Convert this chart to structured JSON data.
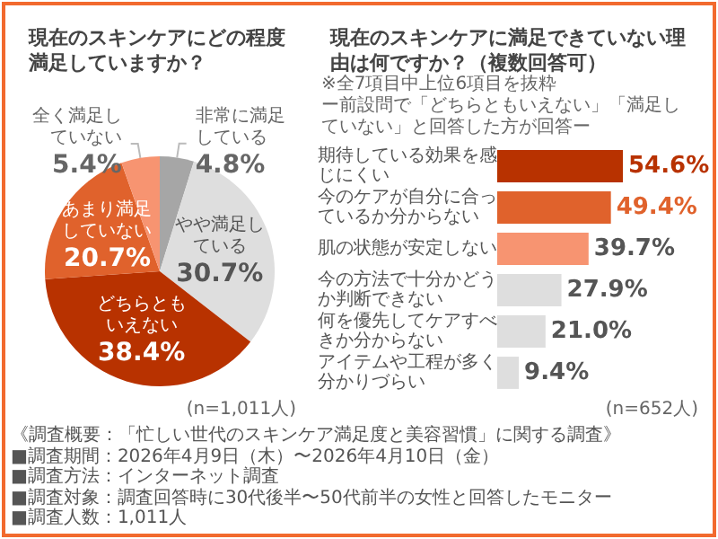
{
  "chart_data": [
    {
      "type": "pie",
      "title": "現在のスキンケアにどの程度満足していますか？",
      "categories": [
        "非常に満足している",
        "やや満足している",
        "どちらともいえない",
        "あまり満足していない",
        "全く満足していない"
      ],
      "values": [
        4.8,
        30.7,
        38.4,
        20.7,
        5.4
      ],
      "colors": [
        "#a6a6a6",
        "#dedede",
        "#b83200",
        "#e0622c",
        "#f79471"
      ],
      "value_labels": [
        "4.8%",
        "30.7%",
        "38.4%",
        "20.7%",
        "5.4%"
      ],
      "annotations": [
        "(n=1,011人)"
      ]
    },
    {
      "type": "bar",
      "orientation": "horizontal",
      "title": "現在のスキンケアに満足できていない理由は何ですか？（複数回答可）",
      "categories": [
        "期待している効果を感じにくい",
        "今のケアが自分に合っているか分からない",
        "肌の状態が安定しない",
        "今の方法で十分かどうか判断できない",
        "何を優先してケアすべきか分からない",
        "アイテムや工程が多く分かりづらい"
      ],
      "values": [
        54.6,
        49.4,
        39.7,
        27.9,
        21.0,
        9.4
      ],
      "colors": [
        "#b83200",
        "#e0622c",
        "#f79471",
        "#dedede",
        "#dedede",
        "#dedede"
      ],
      "value_labels": [
        "54.6%",
        "49.4%",
        "39.7%",
        "27.9%",
        "21.0%",
        "9.4%"
      ],
      "annotations": [
        "※全7項目中上位6項目を抜粋",
        "ー前設問で「どちらともいえない」「満足していない」と回答した方が回答ー",
        "(n=652人)"
      ]
    },
    {
      "type": "other",
      "annotations": [
        "《調査概要：「忙しい世代のスキンケア満足度と美容習慣」に関する調査》",
        "■調査期間：2026年4月9日（木）〜2026年4月10日（金）",
        "■調査方法：インターネット調査",
        "■調査対象：調査回答時に30代後半〜50代前半の女性と回答したモニター",
        "■調査人数：1,011人"
      ]
    }
  ]
}
